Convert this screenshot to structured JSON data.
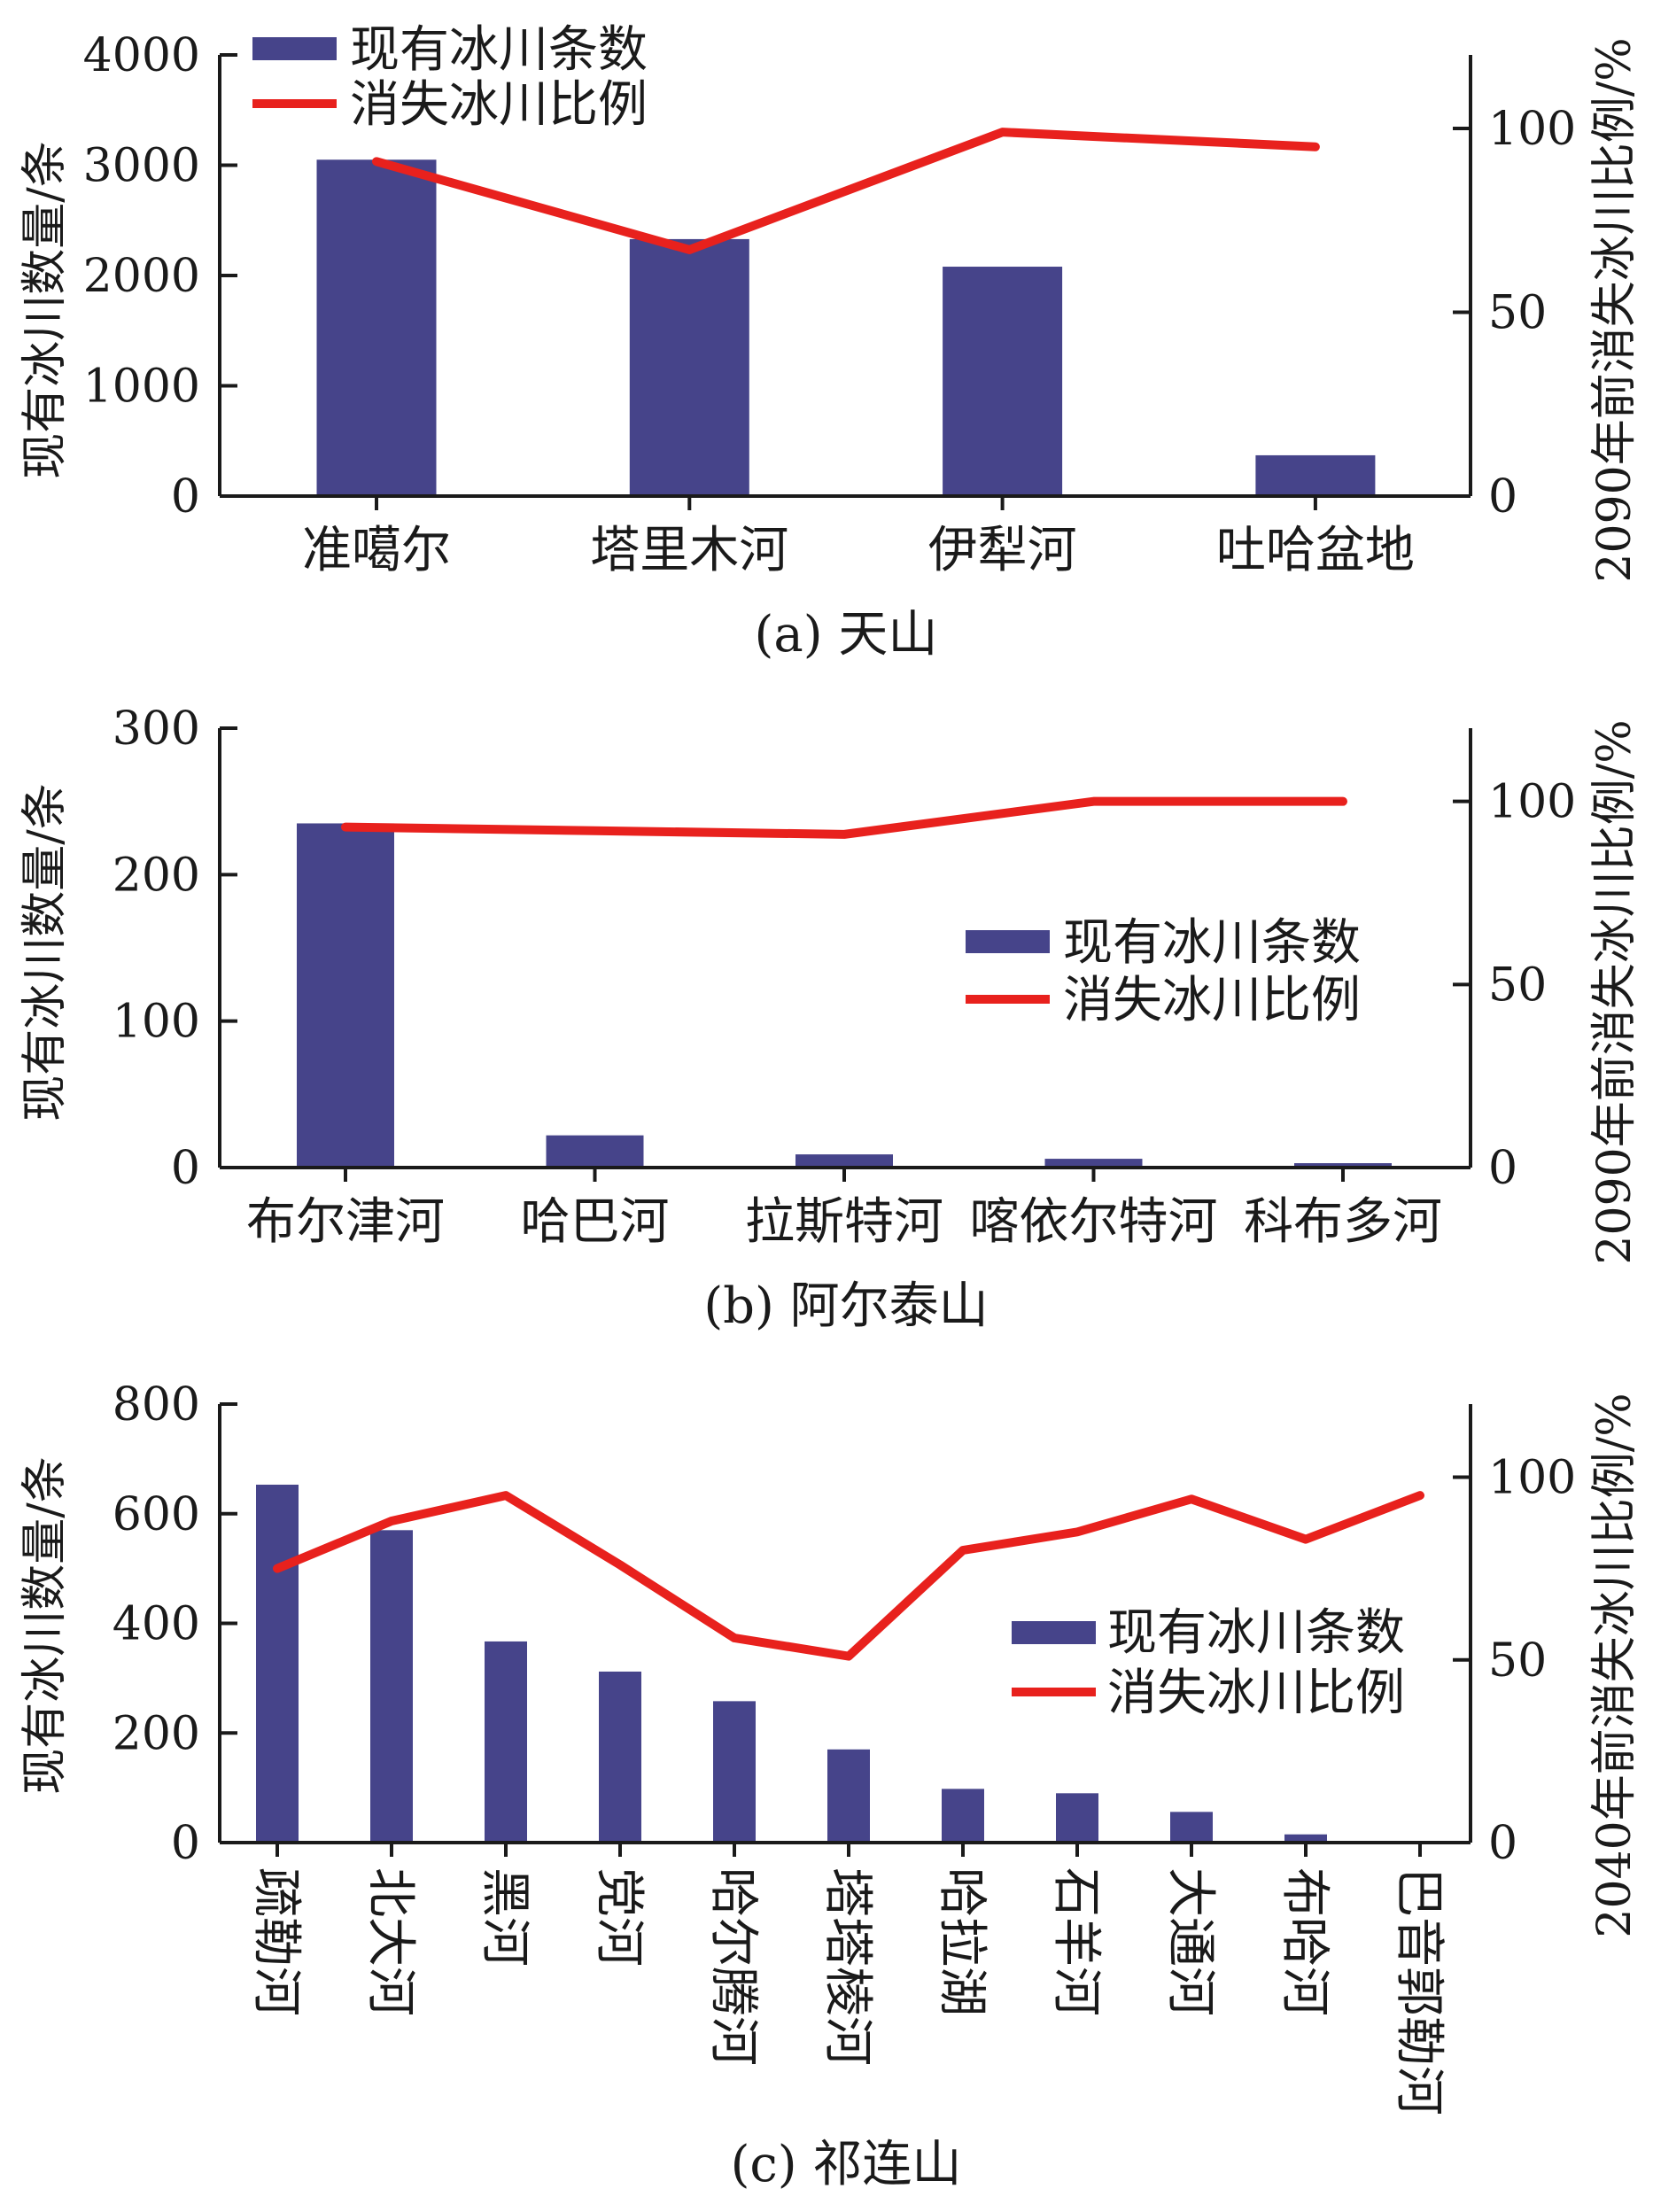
{
  "colors": {
    "bar": "#46448a",
    "line": "#e8211d",
    "axis": "#1a1a1a"
  },
  "chart_data": [
    {
      "type": "bar",
      "panel": "a",
      "caption": "(a) 天山",
      "categories": [
        "准噶尔",
        "塔里木河",
        "伊犁河",
        "吐哈盆地"
      ],
      "series": [
        {
          "name": "现有冰川条数",
          "type": "bar",
          "axis": "left",
          "values": [
            3050,
            2330,
            2080,
            370
          ]
        },
        {
          "name": "消失冰川比例",
          "type": "line",
          "axis": "right",
          "values": [
            91,
            67,
            99,
            95
          ]
        }
      ],
      "ylabel_left": "现有冰川数量/条",
      "ylabel_right": "2090年前消失冰川比例/%",
      "ylim_left": [
        0,
        4000
      ],
      "ylim_right": [
        0,
        120
      ],
      "yticks_left": [
        "0",
        "1000",
        "2000",
        "3000",
        "4000"
      ],
      "yticks_right": [
        "0",
        "50",
        "100"
      ],
      "legend_position": "top-left",
      "grid": false
    },
    {
      "type": "bar",
      "panel": "b",
      "caption": "(b) 阿尔泰山",
      "categories": [
        "布尔津河",
        "哈巴河",
        "拉斯特河",
        "喀依尔特河",
        "科布多河"
      ],
      "series": [
        {
          "name": "现有冰川条数",
          "type": "bar",
          "axis": "left",
          "values": [
            235,
            22,
            9,
            6,
            3
          ]
        },
        {
          "name": "消失冰川比例",
          "type": "line",
          "axis": "right",
          "values": [
            93,
            92,
            91,
            100,
            100
          ]
        }
      ],
      "ylabel_left": "现有冰川数量/条",
      "ylabel_right": "2090年前消失冰川比例/%",
      "ylim_left": [
        0,
        300
      ],
      "ylim_right": [
        0,
        120
      ],
      "yticks_left": [
        "0",
        "100",
        "200",
        "300"
      ],
      "yticks_right": [
        "0",
        "50",
        "100"
      ],
      "legend_position": "center-right",
      "grid": false
    },
    {
      "type": "bar",
      "panel": "c",
      "caption": "(c) 祁连山",
      "categories": [
        "疏勒河",
        "北大河",
        "黑河",
        "党河",
        "哈尔腾河",
        "塔塔棱河",
        "哈拉湖",
        "石羊河",
        "大通河",
        "布哈河",
        "巴音郭勒河"
      ],
      "series": [
        {
          "name": "现有冰川条数",
          "type": "bar",
          "axis": "left",
          "values": [
            653,
            570,
            367,
            312,
            258,
            170,
            98,
            90,
            56,
            15,
            0
          ]
        },
        {
          "name": "消失冰川比例",
          "type": "line",
          "axis": "right",
          "values": [
            75,
            88,
            95,
            76,
            56,
            51,
            80,
            85,
            94,
            83,
            95
          ]
        }
      ],
      "ylabel_left": "现有冰川数量/条",
      "ylabel_right": "2040年前消失冰川比例/%",
      "ylim_left": [
        0,
        800
      ],
      "ylim_right": [
        0,
        120
      ],
      "yticks_left": [
        "0",
        "200",
        "400",
        "600",
        "800"
      ],
      "yticks_right": [
        "0",
        "50",
        "100"
      ],
      "legend_position": "center-right",
      "grid": false
    }
  ]
}
